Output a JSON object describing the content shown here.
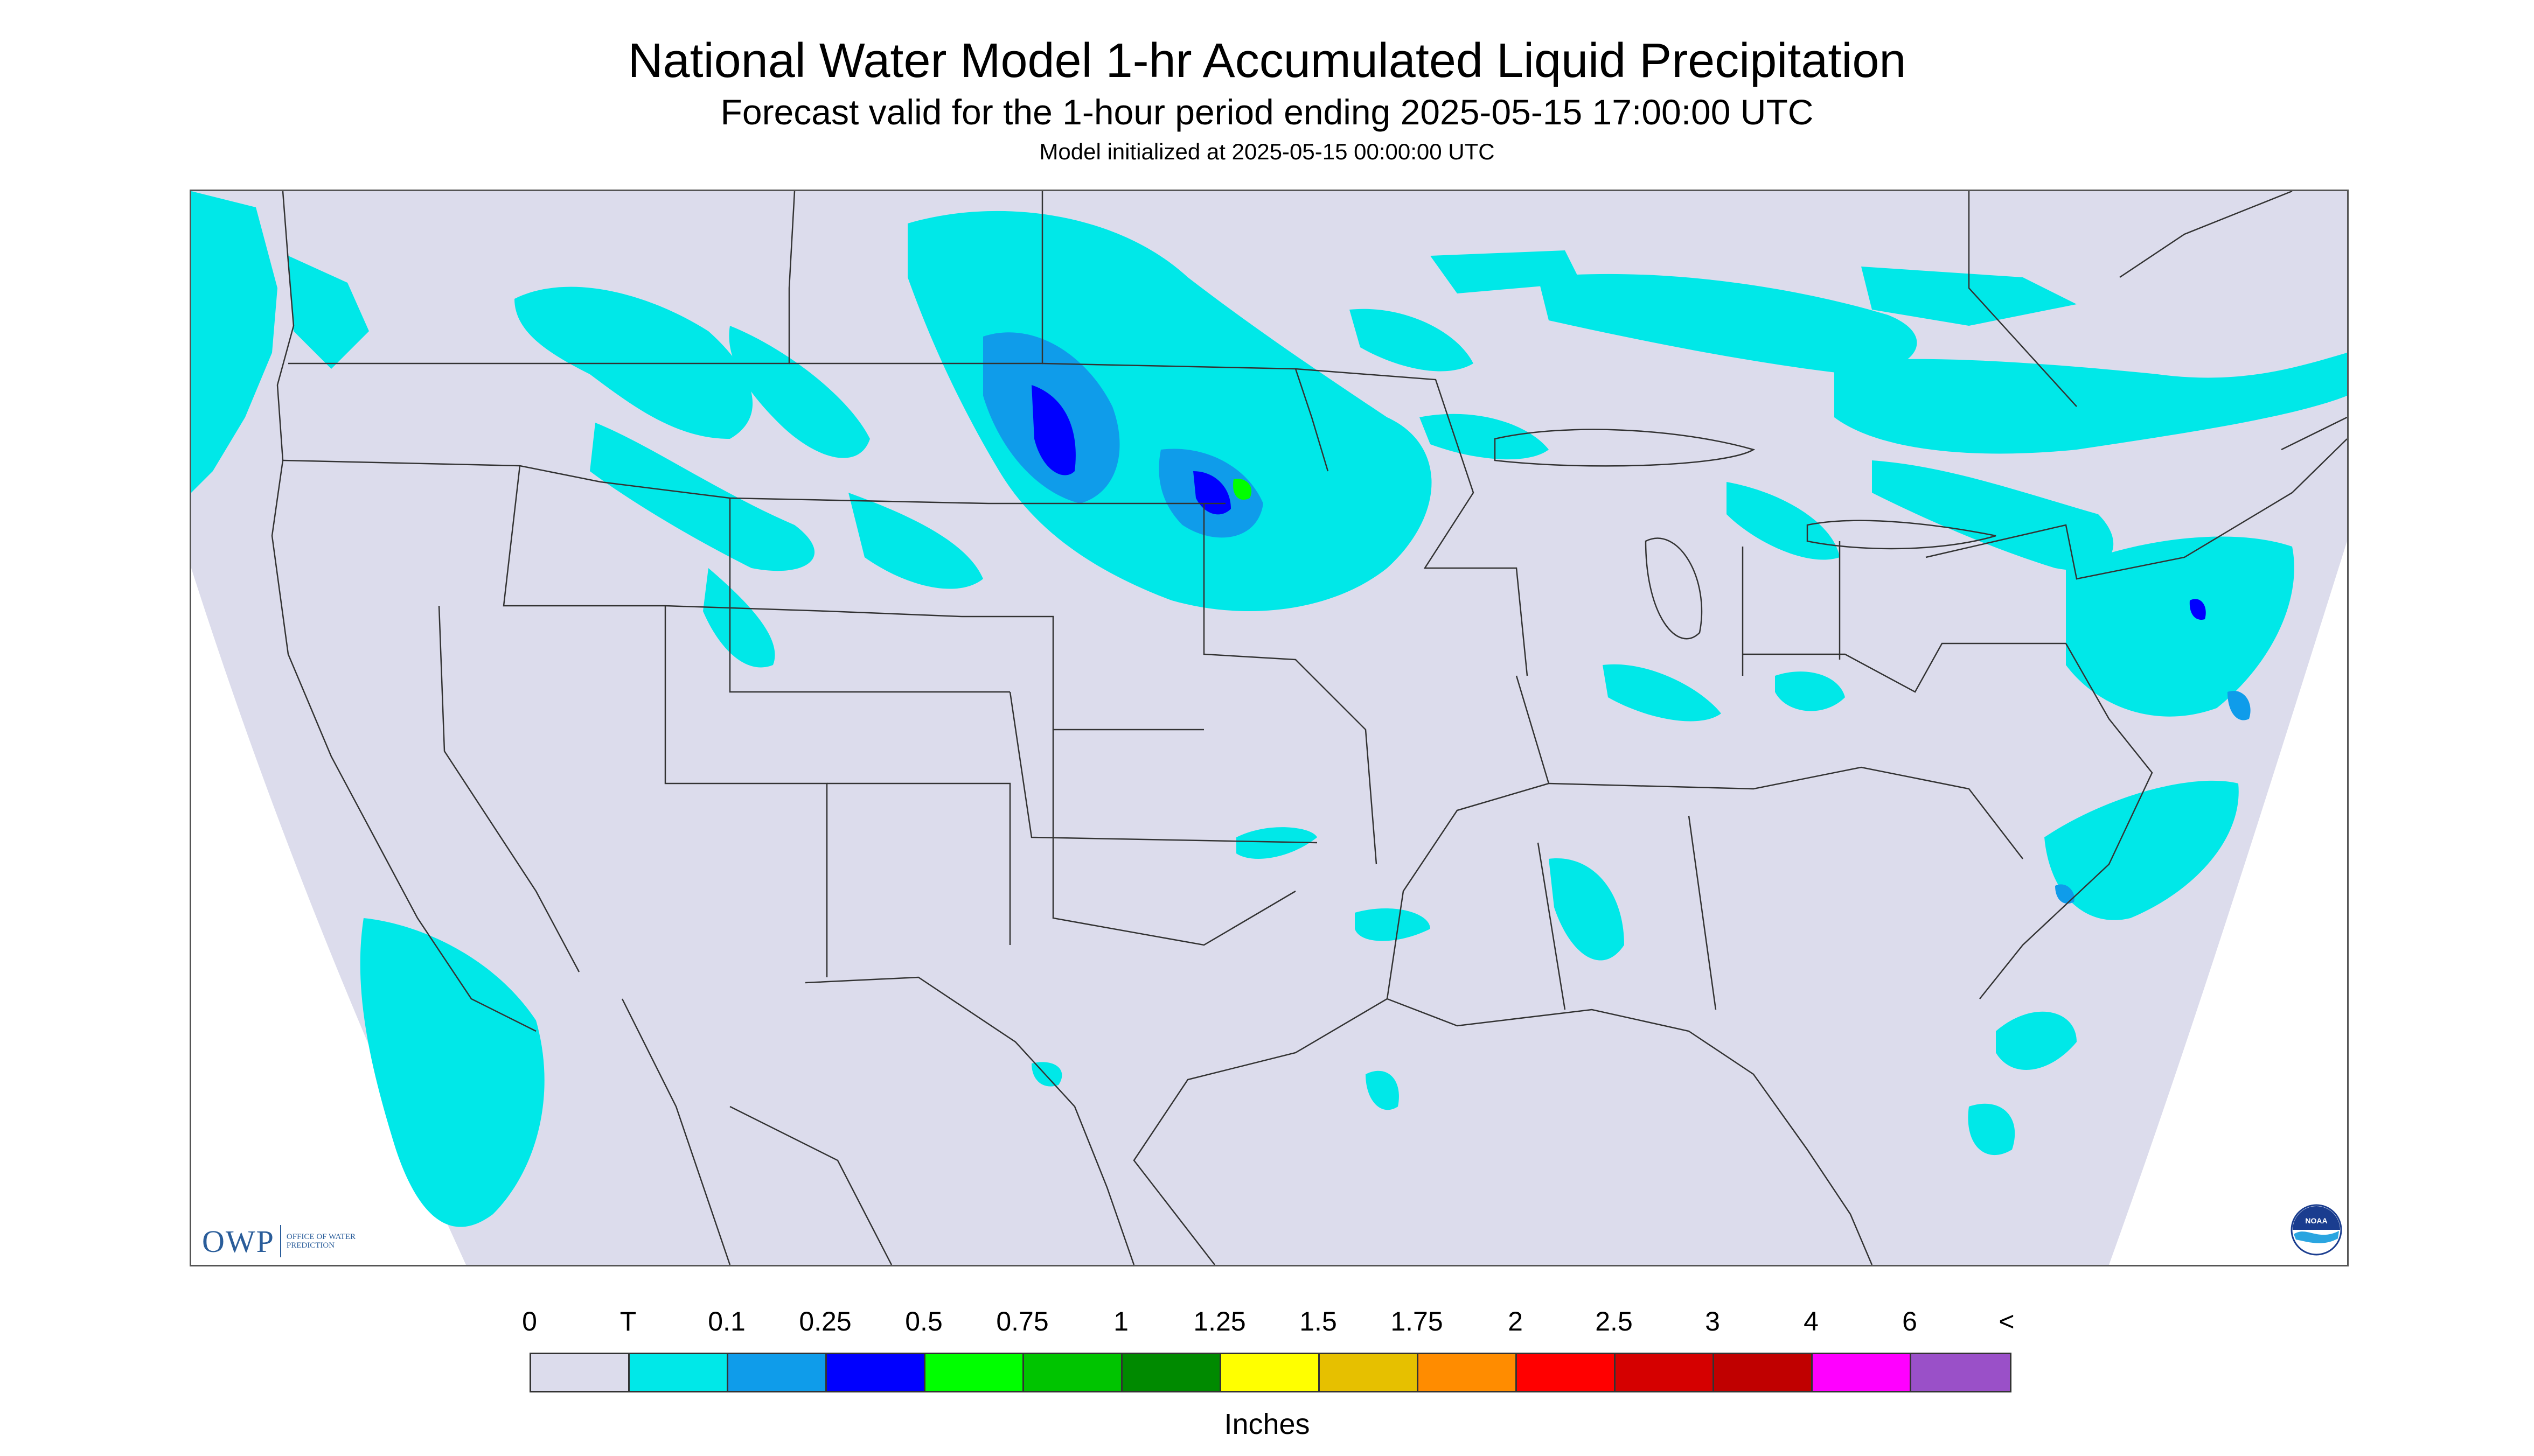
{
  "title": "National Water Model 1-hr Accumulated Liquid Precipitation",
  "subtitle": "Forecast valid for the 1-hour period ending 2025-05-15 17:00:00 UTC",
  "init_text": "Model initialized at 2025-05-15 00:00:00 UTC",
  "logo": {
    "owp_text": "OWP",
    "owp_small": "OFFICE OF WATER PREDICTION",
    "noaa_text": "NOAA"
  },
  "map": {
    "region": "Contiguous United States",
    "background_color": "#dcdcec",
    "outside_color": "#ffffff",
    "border_color": "#333333",
    "precip_colors": {
      "trace": "#00e8e8",
      "light": "#0f9cea",
      "moderate": "#0000ff",
      "heavy": "#00ff00"
    }
  },
  "legend": {
    "units": "Inches",
    "labels": [
      "0",
      "T",
      "0.1",
      "0.25",
      "0.5",
      "0.75",
      "1",
      "1.25",
      "1.5",
      "1.75",
      "2",
      "2.5",
      "3",
      "4",
      "6",
      "<"
    ],
    "colors": [
      "#dcdcec",
      "#00e8e8",
      "#0f9cea",
      "#0000ff",
      "#00ff00",
      "#00c400",
      "#008a00",
      "#ffff00",
      "#e6c000",
      "#ff8c00",
      "#ff0000",
      "#d50000",
      "#c00000",
      "#ff00ff",
      "#9a50c8"
    ]
  }
}
